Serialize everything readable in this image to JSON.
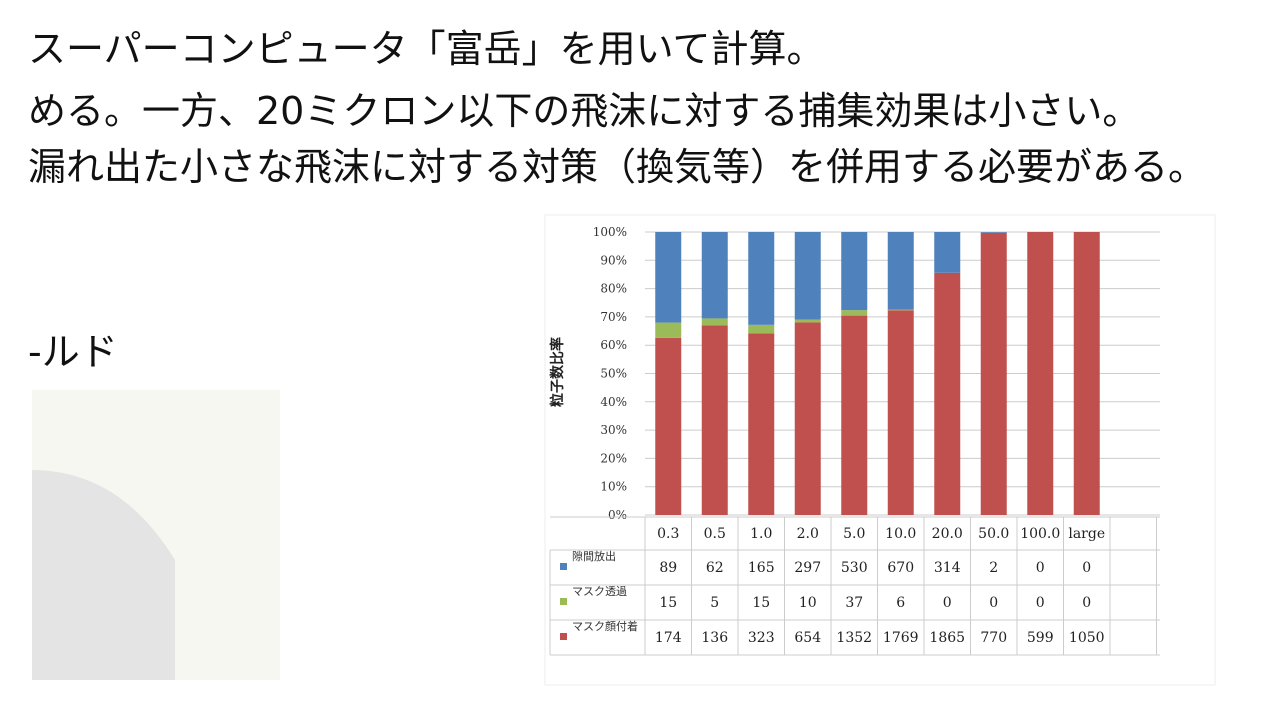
{
  "slide": {
    "lines": [
      "スーパーコンピュータ「富岳」を用いて計算。",
      "める。一方、20ミクロン以下の飛沫に対する捕集効果は小さい。",
      "漏れ出た小さな飛沫に対する対策（換気等）を併用する必要がある。"
    ],
    "side_label": "-ルド"
  },
  "chart_data": {
    "type": "stacked_bar_percent",
    "y_label": "粒子数比率",
    "categories": [
      "0.3",
      "0.5",
      "1.0",
      "2.0",
      "5.0",
      "10.0",
      "20.0",
      "50.0",
      "100.0",
      "large"
    ],
    "series": [
      {
        "name": "隙間放出",
        "color": "#4f81bd",
        "values": [
          89,
          62,
          165,
          297,
          530,
          670,
          314,
          2,
          0,
          0
        ]
      },
      {
        "name": "マスク透過",
        "color": "#9bbb59",
        "values": [
          15,
          5,
          15,
          10,
          37,
          6,
          0,
          0,
          0,
          0
        ]
      },
      {
        "name": "マスク顔付着",
        "color": "#c0504d",
        "values": [
          174,
          136,
          323,
          654,
          1352,
          1769,
          1865,
          770,
          599,
          1050
        ]
      }
    ],
    "ylim": [
      0,
      100
    ],
    "yticks": [
      {
        "value": 0,
        "label": "0%"
      },
      {
        "value": 10,
        "label": "10%"
      },
      {
        "value": 20,
        "label": "20%"
      },
      {
        "value": 30,
        "label": "30%"
      },
      {
        "value": 40,
        "label": "40%"
      },
      {
        "value": 50,
        "label": "50%"
      },
      {
        "value": 60,
        "label": "60%"
      },
      {
        "value": 70,
        "label": "70%"
      },
      {
        "value": 80,
        "label": "80%"
      },
      {
        "value": 90,
        "label": "90%"
      },
      {
        "value": 100,
        "label": "100%"
      }
    ],
    "grid": true
  }
}
